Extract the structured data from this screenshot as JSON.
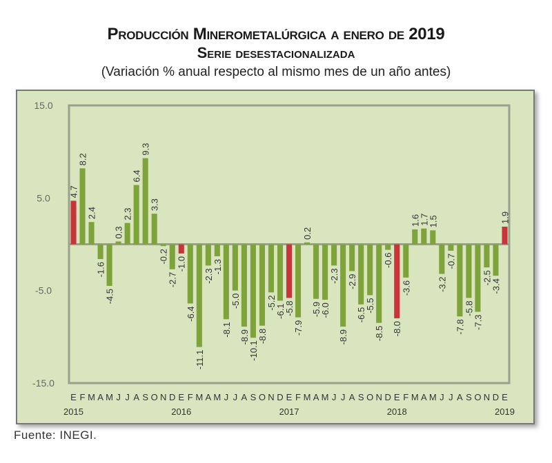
{
  "titles": {
    "line1": "Producción Minerometalúrgica a enero de 2019",
    "line2": "Serie desestacionalizada",
    "line3": "(Variación % anual respecto al mismo mes de un año antes)"
  },
  "source": "Fuente: INEGI.",
  "colors": {
    "bar": "#7ea33a",
    "bar_january": "#c9343a",
    "plot_bg": "#d9e5bf",
    "axis": "#9aa08e"
  },
  "chart_data": {
    "type": "bar",
    "title": "Producción Minerometalúrgica a enero de 2019",
    "subtitle": "Serie desestacionalizada",
    "xlabel": "",
    "ylabel": "",
    "ylim": [
      -15,
      15
    ],
    "yticks": [
      "15.0",
      "5.0",
      "-5.0",
      "-15.0"
    ],
    "ytick_values": [
      15,
      5,
      -5,
      -15
    ],
    "grid": false,
    "month_labels": [
      "E",
      "F",
      "M",
      "A",
      "M",
      "J",
      "J",
      "A",
      "S",
      "O",
      "N",
      "D",
      "E",
      "F",
      "M",
      "A",
      "M",
      "J",
      "J",
      "A",
      "S",
      "O",
      "N",
      "D",
      "E",
      "F",
      "M",
      "A",
      "M",
      "J",
      "J",
      "A",
      "S",
      "O",
      "N",
      "D",
      "E",
      "F",
      "M",
      "A",
      "M",
      "J",
      "J",
      "A",
      "S",
      "O",
      "N",
      "D",
      "E"
    ],
    "year_labels": [
      {
        "label": "2015",
        "index": 0
      },
      {
        "label": "2016",
        "index": 12
      },
      {
        "label": "2017",
        "index": 24
      },
      {
        "label": "2018",
        "index": 36
      },
      {
        "label": "2019",
        "index": 48
      }
    ],
    "values": [
      4.7,
      8.2,
      2.4,
      -1.6,
      -4.5,
      0.3,
      2.3,
      6.4,
      9.3,
      3.3,
      -0.2,
      -2.7,
      -1.0,
      -6.4,
      -11.1,
      -2.3,
      -1.3,
      -8.1,
      -5.0,
      -8.9,
      -10.1,
      -8.8,
      -5.2,
      -6.1,
      -5.8,
      -7.9,
      0.2,
      -5.9,
      -6.0,
      -2.3,
      -8.9,
      -2.9,
      -6.5,
      -5.5,
      -8.5,
      -0.6,
      -8.0,
      -3.6,
      1.6,
      1.7,
      1.5,
      -3.2,
      -0.7,
      -7.8,
      -5.8,
      -7.3,
      -2.5,
      -3.4,
      1.9
    ],
    "labels": [
      "4.7",
      "8.2",
      "2.4",
      "-1.6",
      "-4.5",
      "0.3",
      "2.3",
      "6.4",
      "9.3",
      "3.3",
      "-0.2",
      "-2.7",
      "-1.0",
      "-6.4",
      "-11.1",
      "-2.3",
      "-1.3",
      "-8.1",
      "-5.0",
      "-8.9",
      "-10.1",
      "-8.8",
      "-5.2",
      "-6.1",
      "-5.8",
      "-7.9",
      "0.2",
      "-5.9",
      "-6.0",
      "-2.3",
      "-8.9",
      "-2.9",
      "-6.5",
      "-5.5",
      "-8.5",
      "-0.6",
      "-8.0",
      "-3.6",
      "1.6",
      "1.7",
      "1.5",
      "-3.2",
      "-0.7",
      "-7.8",
      "-5.8",
      "-7.3",
      "-2.5",
      "-3.4",
      "1.9"
    ],
    "highlight": "January bars in red"
  }
}
